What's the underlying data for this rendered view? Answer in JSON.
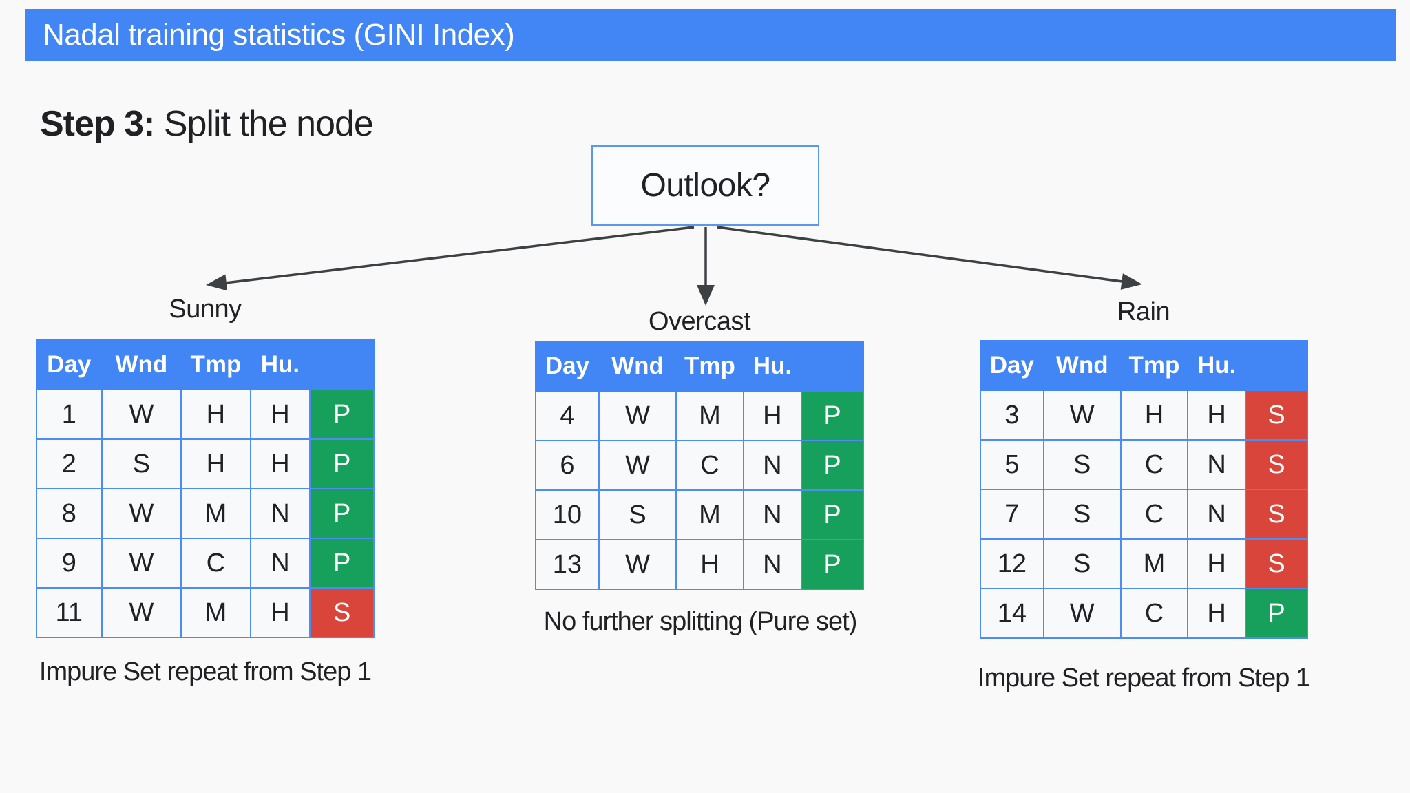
{
  "colors": {
    "accent_blue": "#4285f4",
    "border_blue": "#4d8cf0",
    "green": "#17a05c",
    "red": "#d9453a",
    "arrow": "#3e4144",
    "text_dark": "#202124",
    "cell_bg": "#f8f9fb",
    "page_bg": "#f9f9f9",
    "node_border": "#5c97ee",
    "node_bg": "#fbfcfe"
  },
  "title_bar": {
    "title": "Nadal training statistics (GINI Index)"
  },
  "heading": {
    "prefix": "Step 3:",
    "text": " Split the node"
  },
  "root_node": {
    "label": "Outlook?"
  },
  "table_headers": [
    "Day",
    "Wnd",
    "Tmp",
    "Hu.",
    ""
  ],
  "branches": [
    {
      "label": "Sunny",
      "caption": "Impure Set repeat from Step 1",
      "rows": [
        [
          "1",
          "W",
          "H",
          "H",
          "P"
        ],
        [
          "2",
          "S",
          "H",
          "H",
          "P"
        ],
        [
          "8",
          "W",
          "M",
          "N",
          "P"
        ],
        [
          "9",
          "W",
          "C",
          "N",
          "P"
        ],
        [
          "11",
          "W",
          "M",
          "H",
          "S"
        ]
      ]
    },
    {
      "label": "Overcast",
      "caption": "No further splitting (Pure set)",
      "rows": [
        [
          "4",
          "W",
          "M",
          "H",
          "P"
        ],
        [
          "6",
          "W",
          "C",
          "N",
          "P"
        ],
        [
          "10",
          "S",
          "M",
          "N",
          "P"
        ],
        [
          "13",
          "W",
          "H",
          "N",
          "P"
        ]
      ]
    },
    {
      "label": "Rain",
      "caption": "Impure Set repeat from Step 1",
      "rows": [
        [
          "3",
          "W",
          "H",
          "H",
          "S"
        ],
        [
          "5",
          "S",
          "C",
          "N",
          "S"
        ],
        [
          "7",
          "S",
          "C",
          "N",
          "S"
        ],
        [
          "12",
          "S",
          "M",
          "H",
          "S"
        ],
        [
          "14",
          "W",
          "C",
          "H",
          "P"
        ]
      ]
    }
  ]
}
